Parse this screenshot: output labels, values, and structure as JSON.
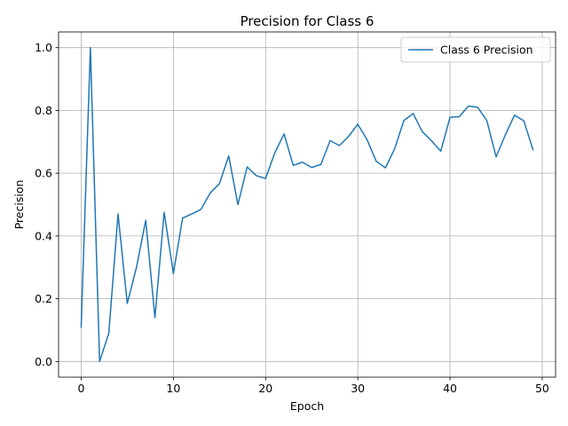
{
  "chart_data": {
    "type": "line",
    "title": "Precision for Class 6",
    "xlabel": "Epoch",
    "ylabel": "Precision",
    "xlim": [
      -2.45,
      51.45
    ],
    "ylim": [
      -0.05,
      1.05
    ],
    "xticks": [
      0,
      10,
      20,
      30,
      40,
      50
    ],
    "yticks": [
      0.0,
      0.2,
      0.4,
      0.6,
      0.8,
      1.0
    ],
    "xtick_labels": [
      "0",
      "10",
      "20",
      "30",
      "40",
      "50"
    ],
    "ytick_labels": [
      "0.0",
      "0.2",
      "0.4",
      "0.6",
      "0.8",
      "1.0"
    ],
    "grid": true,
    "legend_position": "top-right",
    "colors": {
      "series": "#1f77b4",
      "grid": "#b0b0b0"
    },
    "series": [
      {
        "name": "Class 6 Precision",
        "x": [
          0,
          1,
          2,
          3,
          4,
          5,
          6,
          7,
          8,
          9,
          10,
          11,
          12,
          13,
          14,
          15,
          16,
          17,
          18,
          19,
          20,
          21,
          22,
          23,
          24,
          25,
          26,
          27,
          28,
          29,
          30,
          31,
          32,
          33,
          34,
          35,
          36,
          37,
          38,
          39,
          40,
          41,
          42,
          43,
          44,
          45,
          46,
          47,
          48,
          49
        ],
        "values": [
          0.11,
          1.0,
          0.0,
          0.09,
          0.47,
          0.185,
          0.3,
          0.45,
          0.14,
          0.475,
          0.28,
          0.457,
          0.47,
          0.485,
          0.537,
          0.567,
          0.655,
          0.5,
          0.62,
          0.592,
          0.583,
          0.665,
          0.725,
          0.625,
          0.635,
          0.618,
          0.628,
          0.704,
          0.688,
          0.717,
          0.756,
          0.707,
          0.638,
          0.617,
          0.678,
          0.768,
          0.79,
          0.732,
          0.703,
          0.67,
          0.778,
          0.78,
          0.814,
          0.81,
          0.767,
          0.652,
          0.722,
          0.785,
          0.767,
          0.675
        ]
      }
    ]
  }
}
